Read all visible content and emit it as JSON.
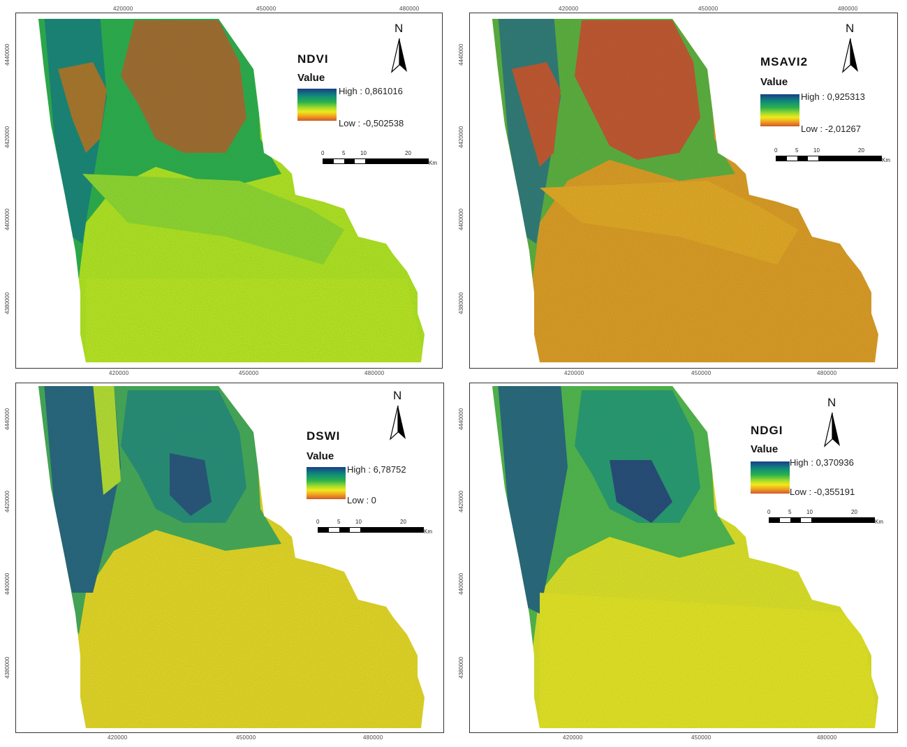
{
  "colors": {
    "ramp_high": "#1a3e86",
    "ramp_mid": "#2cb24c",
    "ramp_yellow": "#f0ea1c",
    "ramp_low": "#cd5a2c"
  },
  "axes": {
    "x_ticks": [
      "420000",
      "450000",
      "480000"
    ],
    "y_ticks": [
      "4440000",
      "4420000",
      "4400000",
      "4380000"
    ]
  },
  "north_label": "N",
  "legend_value_label": "Value",
  "scale": {
    "labels": [
      "0",
      "5",
      "10",
      "20"
    ],
    "unit": "Km"
  },
  "panels": [
    {
      "title": "NDVI",
      "high": "High : 0,861016",
      "low": "Low : -0,502538"
    },
    {
      "title": "MSAVI2",
      "high": "High : 0,925313",
      "low": "Low : -2,01267"
    },
    {
      "title": "DSWI",
      "high": "High : 6,78752",
      "low": "Low : 0"
    },
    {
      "title": "NDGI",
      "high": "High : 0,370936",
      "low": "Low : -0,355191"
    }
  ]
}
